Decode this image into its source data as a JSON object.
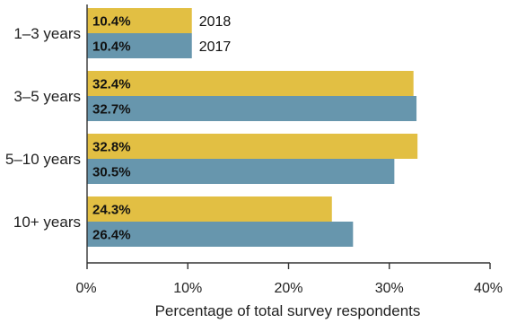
{
  "chart_data": {
    "type": "bar",
    "orientation": "horizontal",
    "categories": [
      "1–3 years",
      "3–5 years",
      "5–10 years",
      "10+ years"
    ],
    "series": [
      {
        "name": "2018",
        "color": "#E2BF43",
        "values": [
          10.4,
          32.4,
          32.8,
          24.3
        ],
        "labels": [
          "10.4%",
          "32.4%",
          "32.8%",
          "24.3%"
        ]
      },
      {
        "name": "2017",
        "color": "#6796AD",
        "values": [
          10.4,
          32.7,
          30.5,
          26.4
        ],
        "labels": [
          "10.4%",
          "32.7%",
          "30.5%",
          "26.4%"
        ]
      }
    ],
    "xlabel": "Percentage of total survey respondents",
    "ylabel": "",
    "xlim": [
      0,
      40
    ],
    "x_ticks": [
      0,
      10,
      20,
      30,
      40
    ],
    "x_tick_labels": [
      "0%",
      "10%",
      "20%",
      "30%",
      "40%"
    ],
    "grid": false,
    "legend_placement": "inline, right of the first category's bars"
  }
}
